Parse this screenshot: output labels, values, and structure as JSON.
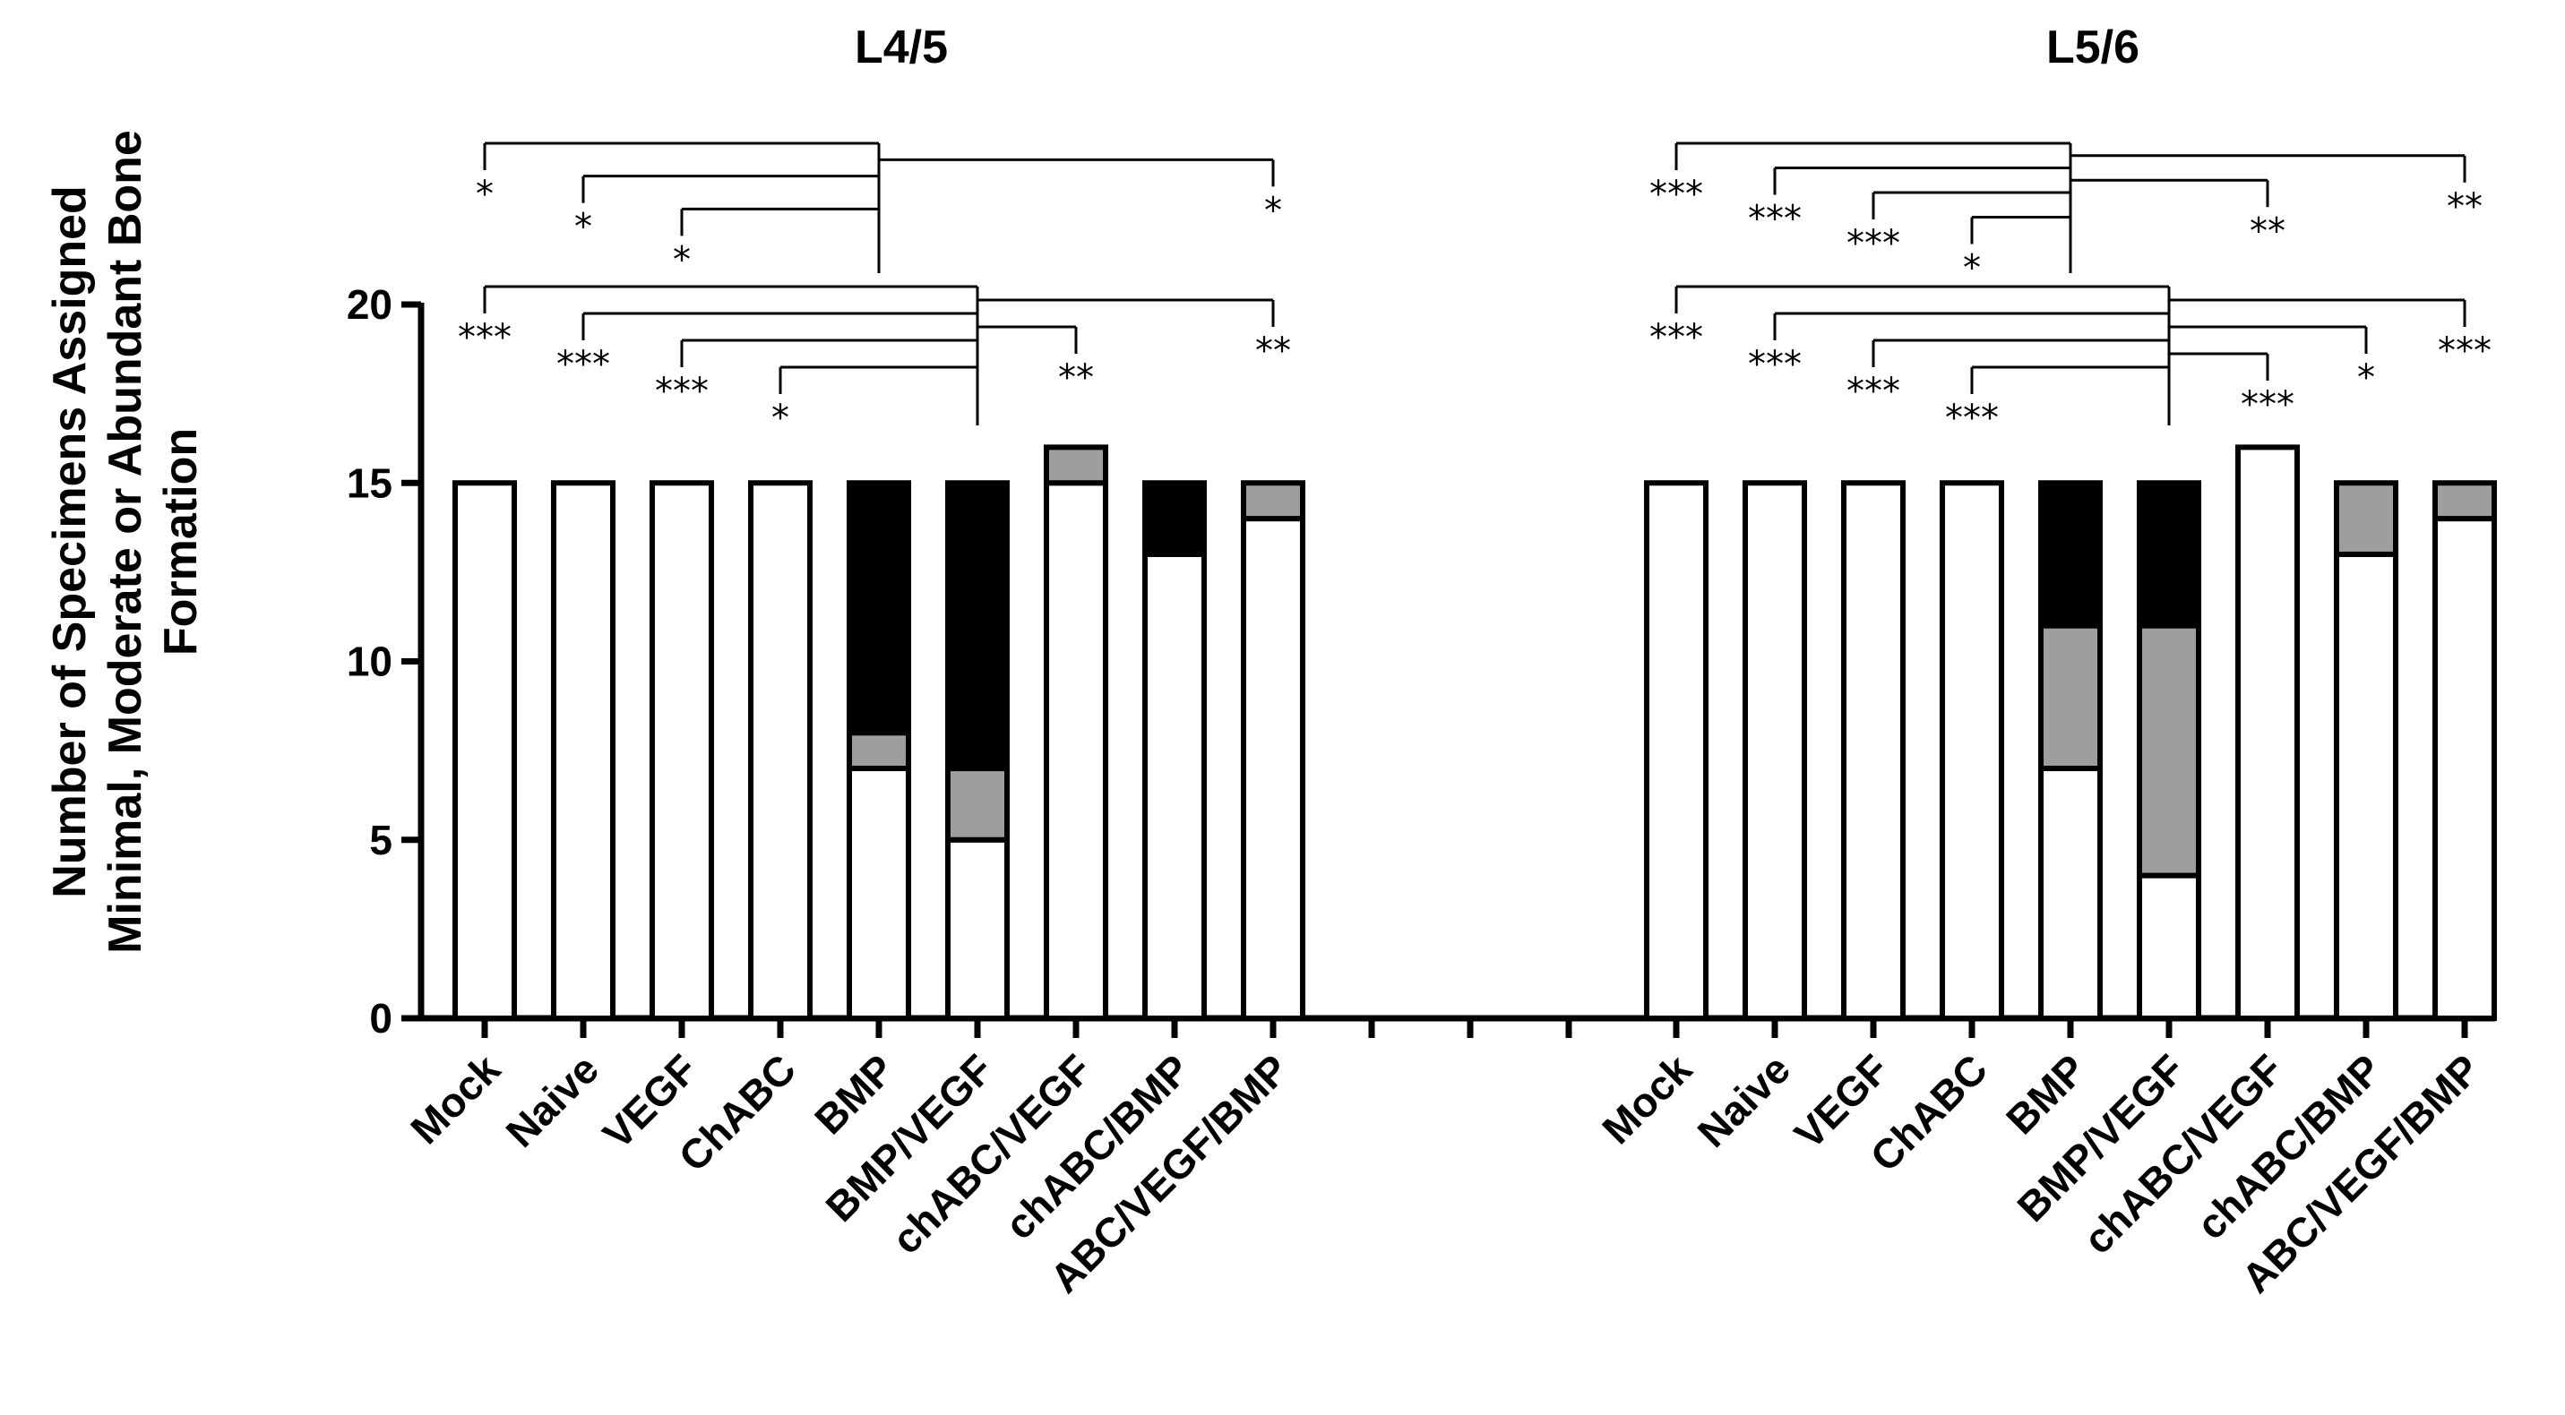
{
  "chart_data": {
    "type": "bar",
    "stacked": true,
    "ylabel": "Number of Specimens Assigned Minimal, Moderate or Abundant Bone Formation",
    "ylim": [
      0,
      20
    ],
    "yticks": [
      0,
      5,
      10,
      15,
      20
    ],
    "series_colors": {
      "minimal": "#ffffff",
      "moderate": "#9e9e9e",
      "abundant": "#000000"
    },
    "panels": [
      {
        "title": "L4/5",
        "categories": [
          "Mock",
          "Naive",
          "VEGF",
          "ChABC",
          "BMP",
          "BMP/VEGF",
          "chABC/VEGF",
          "chABC/BMP",
          "ABC/VEGF/BMP"
        ],
        "series": [
          {
            "values": [
              15,
              15,
              15,
              15,
              7,
              5,
              15,
              13,
              14
            ]
          },
          {
            "values": [
              0,
              0,
              0,
              0,
              1,
              2,
              1,
              0,
              1
            ]
          },
          {
            "values": [
              0,
              0,
              0,
              0,
              7,
              8,
              0,
              2,
              0
            ]
          }
        ],
        "comparisons": [
          {
            "ref": 4,
            "targets": [
              [
                0,
                "*"
              ],
              [
                1,
                "*"
              ],
              [
                2,
                "*"
              ],
              [
                8,
                "*"
              ]
            ]
          },
          {
            "ref": 5,
            "targets": [
              [
                0,
                "***"
              ],
              [
                1,
                "***"
              ],
              [
                2,
                "***"
              ],
              [
                3,
                "*"
              ],
              [
                6,
                "**"
              ],
              [
                8,
                "**"
              ]
            ]
          }
        ]
      },
      {
        "title": "L5/6",
        "categories": [
          "Mock",
          "Naive",
          "VEGF",
          "ChABC",
          "BMP",
          "BMP/VEGF",
          "chABC/VEGF",
          "chABC/BMP",
          "ABC/VEGF/BMP"
        ],
        "series": [
          {
            "values": [
              15,
              15,
              15,
              15,
              7,
              4,
              16,
              13,
              14
            ]
          },
          {
            "values": [
              0,
              0,
              0,
              0,
              4,
              7,
              0,
              2,
              1
            ]
          },
          {
            "values": [
              0,
              0,
              0,
              0,
              4,
              4,
              0,
              0,
              0
            ]
          }
        ],
        "comparisons": [
          {
            "ref": 4,
            "targets": [
              [
                0,
                "***"
              ],
              [
                1,
                "***"
              ],
              [
                2,
                "***"
              ],
              [
                3,
                "*"
              ],
              [
                6,
                "**"
              ],
              [
                8,
                "**"
              ]
            ]
          },
          {
            "ref": 5,
            "targets": [
              [
                0,
                "***"
              ],
              [
                1,
                "***"
              ],
              [
                2,
                "***"
              ],
              [
                3,
                "***"
              ],
              [
                6,
                "***"
              ],
              [
                7,
                "*"
              ],
              [
                8,
                "***"
              ]
            ]
          }
        ]
      }
    ]
  }
}
